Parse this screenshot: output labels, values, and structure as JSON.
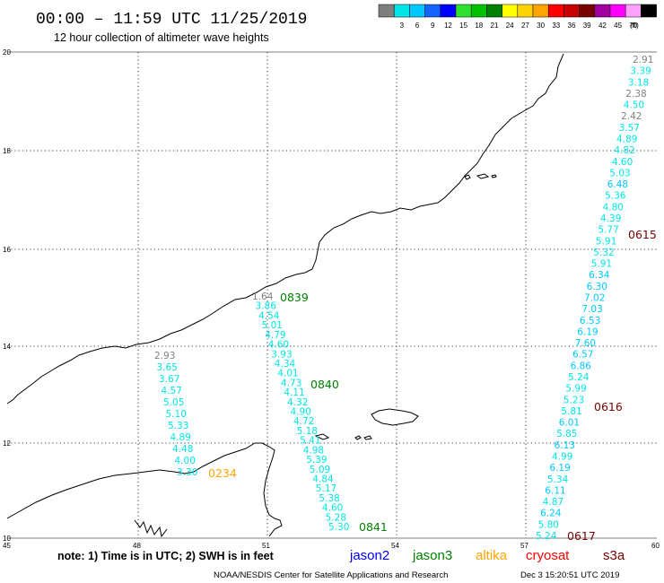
{
  "header": {
    "title": "00:00 – 11:59 UTC 11/25/2019",
    "subtitle": "12 hour collection of altimeter wave heights"
  },
  "legend": {
    "unit": "(ft)",
    "bins": [
      {
        "label": "",
        "color": "#7f7f7f"
      },
      {
        "label": "3",
        "color": "#00e5e5"
      },
      {
        "label": "6",
        "color": "#00c8ff"
      },
      {
        "label": "9",
        "color": "#1464ff"
      },
      {
        "label": "12",
        "color": "#0000ff"
      },
      {
        "label": "15",
        "color": "#30e030"
      },
      {
        "label": "18",
        "color": "#00c000"
      },
      {
        "label": "21",
        "color": "#008000"
      },
      {
        "label": "24",
        "color": "#ffff00"
      },
      {
        "label": "27",
        "color": "#ffd200"
      },
      {
        "label": "30",
        "color": "#ffa500"
      },
      {
        "label": "33",
        "color": "#ff0000"
      },
      {
        "label": "36",
        "color": "#c80000"
      },
      {
        "label": "39",
        "color": "#780000"
      },
      {
        "label": "42",
        "color": "#a000a0"
      },
      {
        "label": "45",
        "color": "#ff00ff"
      },
      {
        "label": "70",
        "color": "#ffa0ff"
      },
      {
        "label": "",
        "color": "#000000"
      }
    ]
  },
  "axes": {
    "x_ticks": [
      "45",
      "48",
      "51",
      "54",
      "57",
      "60"
    ],
    "y_ticks": [
      "20",
      "18",
      "16",
      "14",
      "12",
      "10"
    ]
  },
  "tracks": [
    {
      "id": "track-left",
      "values": [
        {
          "v": "2.93",
          "color": "#7f7f7f"
        },
        {
          "v": "3.65",
          "color": "#00e5e5"
        },
        {
          "v": "3.67",
          "color": "#00e5e5"
        },
        {
          "v": "4.57",
          "color": "#00e5e5"
        },
        {
          "v": "5.05",
          "color": "#00e5e5"
        },
        {
          "v": "5.10",
          "color": "#00e5e5"
        },
        {
          "v": "5.33",
          "color": "#00e5e5"
        },
        {
          "v": "4.89",
          "color": "#00e5e5"
        },
        {
          "v": "4.48",
          "color": "#00e5e5"
        },
        {
          "v": "4.00",
          "color": "#00e5e5"
        },
        {
          "v": "3.30",
          "color": "#00e5e5"
        }
      ],
      "pass": {
        "label": "0234",
        "color": "#ffa500"
      }
    },
    {
      "id": "track-middle",
      "values": [
        {
          "v": "1.64",
          "color": "#7f7f7f"
        },
        {
          "v": "3.86",
          "color": "#00e5e5"
        },
        {
          "v": "4.54",
          "color": "#00e5e5"
        },
        {
          "v": "5.01",
          "color": "#00e5e5"
        },
        {
          "v": "4.79",
          "color": "#00e5e5"
        },
        {
          "v": "4.60",
          "color": "#00e5e5"
        },
        {
          "v": "3.93",
          "color": "#00e5e5"
        },
        {
          "v": "4.34",
          "color": "#00e5e5"
        },
        {
          "v": "4.01",
          "color": "#00e5e5"
        },
        {
          "v": "4.73",
          "color": "#00e5e5"
        },
        {
          "v": "4.11",
          "color": "#00e5e5"
        },
        {
          "v": "4.32",
          "color": "#00e5e5"
        },
        {
          "v": "4.90",
          "color": "#00e5e5"
        },
        {
          "v": "4.72",
          "color": "#00e5e5"
        },
        {
          "v": "5.18",
          "color": "#00e5e5"
        },
        {
          "v": "5.41",
          "color": "#00e5e5"
        },
        {
          "v": "4.98",
          "color": "#00e5e5"
        },
        {
          "v": "5.39",
          "color": "#00e5e5"
        },
        {
          "v": "5.09",
          "color": "#00e5e5"
        },
        {
          "v": "4.84",
          "color": "#00e5e5"
        },
        {
          "v": "5.17",
          "color": "#00e5e5"
        },
        {
          "v": "5.38",
          "color": "#00e5e5"
        },
        {
          "v": "4.60",
          "color": "#00e5e5"
        },
        {
          "v": "5.28",
          "color": "#00e5e5"
        },
        {
          "v": "5.30",
          "color": "#00e5e5"
        }
      ],
      "passes": [
        {
          "label": "0839",
          "color": "#008000"
        },
        {
          "label": "0840",
          "color": "#008000"
        },
        {
          "label": "0841",
          "color": "#008000"
        }
      ]
    },
    {
      "id": "track-right",
      "values": [
        {
          "v": "2.91",
          "color": "#7f7f7f"
        },
        {
          "v": "3.39",
          "color": "#00e5e5"
        },
        {
          "v": "3.18",
          "color": "#00e5e5"
        },
        {
          "v": "2.38",
          "color": "#7f7f7f"
        },
        {
          "v": "4.50",
          "color": "#00e5e5"
        },
        {
          "v": "2.42",
          "color": "#7f7f7f"
        },
        {
          "v": "3.57",
          "color": "#00e5e5"
        },
        {
          "v": "4.89",
          "color": "#00e5e5"
        },
        {
          "v": "4.82",
          "color": "#00e5e5"
        },
        {
          "v": "4.60",
          "color": "#00e5e5"
        },
        {
          "v": "5.03",
          "color": "#00e5e5"
        },
        {
          "v": "6.48",
          "color": "#00c8ff"
        },
        {
          "v": "5.36",
          "color": "#00e5e5"
        },
        {
          "v": "4.80",
          "color": "#00e5e5"
        },
        {
          "v": "4.39",
          "color": "#00e5e5"
        },
        {
          "v": "5.77",
          "color": "#00e5e5"
        },
        {
          "v": "5.91",
          "color": "#00e5e5"
        },
        {
          "v": "5.32",
          "color": "#00e5e5"
        },
        {
          "v": "5.91",
          "color": "#00e5e5"
        },
        {
          "v": "6.34",
          "color": "#00c8ff"
        },
        {
          "v": "6.30",
          "color": "#00c8ff"
        },
        {
          "v": "7.02",
          "color": "#00c8ff"
        },
        {
          "v": "7.03",
          "color": "#00c8ff"
        },
        {
          "v": "6.53",
          "color": "#00c8ff"
        },
        {
          "v": "6.19",
          "color": "#00c8ff"
        },
        {
          "v": "7.60",
          "color": "#00c8ff"
        },
        {
          "v": "6.57",
          "color": "#00c8ff"
        },
        {
          "v": "6.86",
          "color": "#00c8ff"
        },
        {
          "v": "5.24",
          "color": "#00e5e5"
        },
        {
          "v": "5.99",
          "color": "#00e5e5"
        },
        {
          "v": "5.23",
          "color": "#00e5e5"
        },
        {
          "v": "5.81",
          "color": "#00e5e5"
        },
        {
          "v": "6.01",
          "color": "#00c8ff"
        },
        {
          "v": "5.85",
          "color": "#00e5e5"
        },
        {
          "v": "6.13",
          "color": "#00c8ff"
        },
        {
          "v": "4.99",
          "color": "#00e5e5"
        },
        {
          "v": "6.19",
          "color": "#00c8ff"
        },
        {
          "v": "5.34",
          "color": "#00e5e5"
        },
        {
          "v": "6.11",
          "color": "#00c8ff"
        },
        {
          "v": "4.87",
          "color": "#00e5e5"
        },
        {
          "v": "6.24",
          "color": "#00c8ff"
        },
        {
          "v": "5.80",
          "color": "#00e5e5"
        },
        {
          "v": "5.24",
          "color": "#00e5e5"
        }
      ],
      "passes": [
        {
          "label": "0615",
          "color": "#780000"
        },
        {
          "label": "0616",
          "color": "#780000"
        },
        {
          "label": "0617",
          "color": "#780000"
        }
      ]
    }
  ],
  "footer": {
    "note": "note: 1) Time is in UTC; 2) SWH is in feet",
    "satellites": [
      {
        "name": "jason2",
        "color": "#0000ff"
      },
      {
        "name": "jason3",
        "color": "#008000"
      },
      {
        "name": "altika",
        "color": "#ffa500"
      },
      {
        "name": "cryosat",
        "color": "#ff0000"
      },
      {
        "name": "s3a",
        "color": "#780000"
      }
    ],
    "credit": "NOAA/NESDIS Center for Satellite Applications and Research",
    "timestamp": "Dec  3 15:20:51 UTC 2019"
  }
}
